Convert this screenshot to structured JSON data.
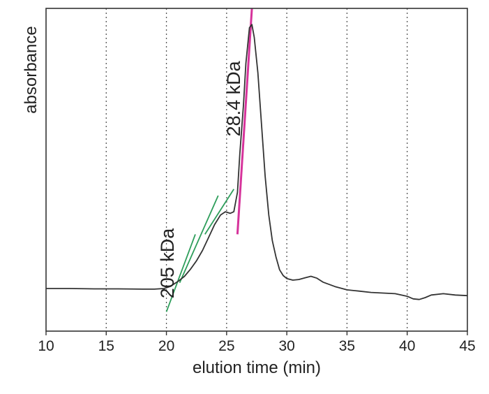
{
  "chart_data": {
    "type": "line",
    "title": "",
    "xlabel": "elution time (min)",
    "ylabel": "absorbance",
    "xlim": [
      10,
      45
    ],
    "ylim": [
      0,
      1
    ],
    "x_ticks": [
      10,
      15,
      20,
      25,
      30,
      35,
      40,
      45
    ],
    "y_ticks": [],
    "grid": {
      "vertical": "dotted",
      "horizontal": false
    },
    "series": [
      {
        "color": "#333333",
        "x": [
          10,
          12,
          14,
          16,
          18,
          19,
          19.8,
          20.3,
          21,
          21.5,
          22,
          22.5,
          23,
          23.5,
          24,
          24.5,
          24.9,
          25.3,
          25.6,
          25.9,
          26.1,
          26.4,
          26.6,
          26.9,
          27.1,
          27.3,
          27.6,
          27.9,
          28.2,
          28.5,
          28.8,
          29.1,
          29.4,
          29.7,
          30,
          30.5,
          31,
          31.5,
          32,
          32.5,
          33,
          34,
          35,
          36,
          37,
          38,
          39,
          40,
          40.5,
          41,
          41.5,
          42,
          43,
          44,
          45
        ],
        "y": [
          0.132,
          0.132,
          0.131,
          0.131,
          0.13,
          0.13,
          0.132,
          0.138,
          0.155,
          0.17,
          0.192,
          0.218,
          0.25,
          0.29,
          0.33,
          0.36,
          0.37,
          0.365,
          0.37,
          0.43,
          0.55,
          0.7,
          0.83,
          0.94,
          0.95,
          0.91,
          0.8,
          0.64,
          0.48,
          0.36,
          0.28,
          0.23,
          0.19,
          0.172,
          0.163,
          0.158,
          0.16,
          0.165,
          0.17,
          0.164,
          0.152,
          0.138,
          0.128,
          0.124,
          0.12,
          0.118,
          0.116,
          0.108,
          0.1,
          0.098,
          0.104,
          0.112,
          0.116,
          0.112,
          0.11
        ]
      }
    ],
    "fit_lines": [
      {
        "color": "#2e9e5b",
        "x": [
          20,
          22.4
        ],
        "y": [
          0.06,
          0.3
        ]
      },
      {
        "color": "#2e9e5b",
        "x": [
          21.1,
          24.3
        ],
        "y": [
          0.15,
          0.42
        ]
      },
      {
        "color": "#2e9e5b",
        "x": [
          23.2,
          25.6
        ],
        "y": [
          0.3,
          0.44
        ]
      },
      {
        "color": "#d6339b",
        "x": [
          25.9,
          27.1
        ],
        "y": [
          0.3,
          1.0
        ]
      }
    ],
    "annotations": [
      {
        "text": "205 kDa",
        "x": 20.6,
        "y": 0.21
      },
      {
        "text": "28.4 kDa",
        "x": 26.1,
        "y": 0.72
      }
    ]
  }
}
